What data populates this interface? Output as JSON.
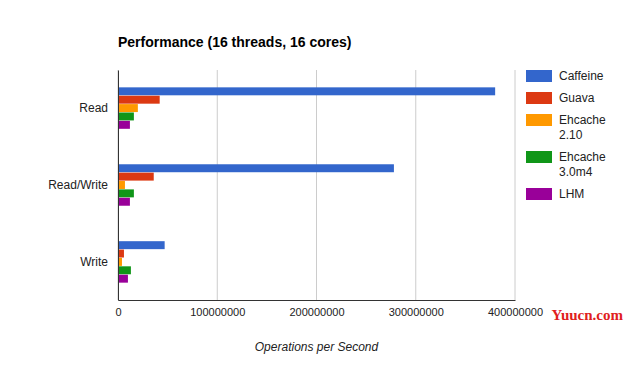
{
  "chart_data": {
    "type": "bar",
    "orientation": "horizontal",
    "title": "Performance (16 threads, 16 cores)",
    "x_label": "Operations per Second",
    "categories": [
      "Read",
      "Read/Write",
      "Write"
    ],
    "series": [
      {
        "name": "Caffeine",
        "color": "#3366cc",
        "values": [
          380000000,
          278000000,
          47000000
        ]
      },
      {
        "name": "Guava",
        "color": "#dc3912",
        "values": [
          42000000,
          36000000,
          6000000
        ]
      },
      {
        "name": "Ehcache 2.10",
        "color": "#ff9900",
        "values": [
          20000000,
          7000000,
          4000000
        ]
      },
      {
        "name": "Ehcache 3.0m4",
        "color": "#109618",
        "values": [
          16000000,
          16000000,
          13000000
        ]
      },
      {
        "name": "LHM",
        "color": "#990099",
        "values": [
          12000000,
          12000000,
          10000000
        ]
      }
    ],
    "xlim": [
      0,
      400000000
    ],
    "xticks": [
      0,
      100000000,
      200000000,
      300000000,
      400000000
    ],
    "grid": true,
    "legend": "right",
    "annotations": [
      "Yuucn.com"
    ]
  }
}
